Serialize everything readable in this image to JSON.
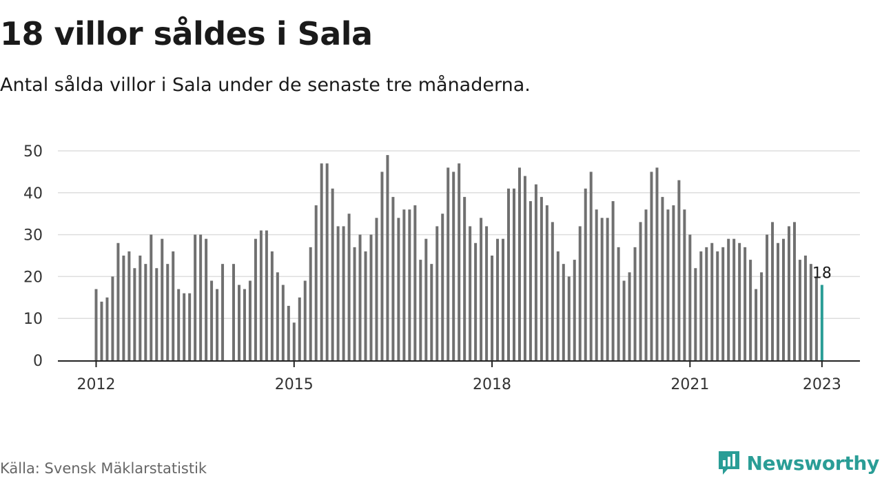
{
  "header": {
    "title": "18 villor såldes i Sala",
    "subtitle": "Antal sålda villor i Sala under de senaste tre månaderna."
  },
  "footer": {
    "source": "Källa: Svensk Mäklarstatistik",
    "brand": "Newsworthy",
    "brand_icon": "newsworthy-logo-icon"
  },
  "colors": {
    "bar": "#707070",
    "highlight": "#2a9d96",
    "grid": "#dddddd",
    "axis": "#222222"
  },
  "chart_data": {
    "type": "bar",
    "title": "",
    "xlabel": "",
    "ylabel": "",
    "ylim": [
      0,
      50
    ],
    "yticks": [
      0,
      10,
      20,
      30,
      40,
      50
    ],
    "xticks": [
      {
        "label": "2012",
        "index": 0
      },
      {
        "label": "2015",
        "index": 36
      },
      {
        "label": "2018",
        "index": 72
      },
      {
        "label": "2021",
        "index": 108
      },
      {
        "label": "2023",
        "index": 132
      }
    ],
    "start": "2012-01",
    "frequency": "monthly",
    "highlight_label": "18",
    "grid": true,
    "values": [
      17,
      14,
      15,
      20,
      28,
      25,
      26,
      22,
      25,
      23,
      30,
      22,
      29,
      23,
      26,
      17,
      16,
      16,
      30,
      30,
      29,
      19,
      17,
      23,
      null,
      23,
      18,
      17,
      19,
      29,
      31,
      31,
      26,
      21,
      18,
      13,
      9,
      15,
      19,
      27,
      37,
      47,
      47,
      41,
      32,
      32,
      35,
      27,
      30,
      26,
      30,
      34,
      45,
      49,
      39,
      34,
      36,
      36,
      37,
      24,
      29,
      23,
      32,
      35,
      46,
      45,
      47,
      39,
      32,
      28,
      34,
      32,
      25,
      29,
      29,
      41,
      41,
      46,
      44,
      38,
      42,
      39,
      37,
      33,
      26,
      23,
      20,
      24,
      32,
      41,
      45,
      36,
      34,
      34,
      38,
      27,
      19,
      21,
      27,
      33,
      36,
      45,
      46,
      39,
      36,
      37,
      43,
      36,
      30,
      22,
      26,
      27,
      28,
      26,
      27,
      29,
      29,
      28,
      27,
      24,
      17,
      21,
      30,
      33,
      28,
      29,
      32,
      33,
      24,
      25,
      23,
      20,
      18
    ]
  }
}
